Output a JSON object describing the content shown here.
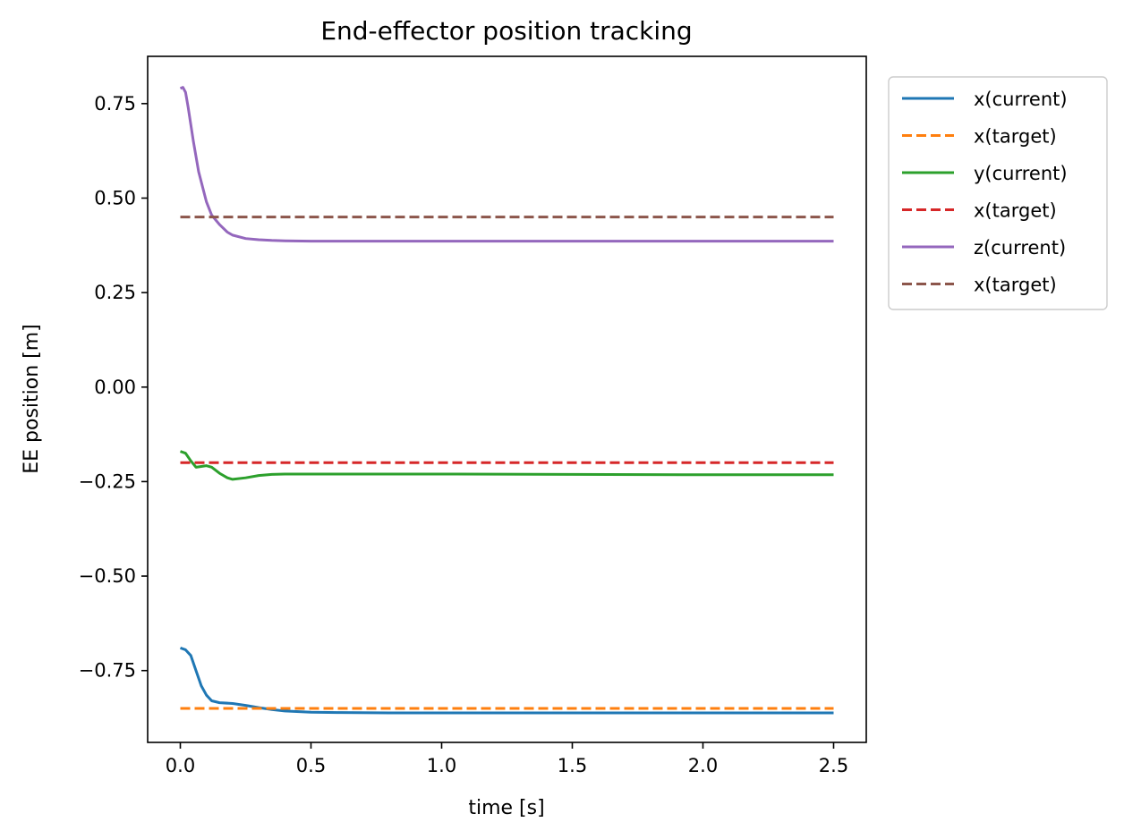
{
  "chart_data": {
    "type": "line",
    "title": "End-effector position tracking",
    "xlabel": "time [s]",
    "ylabel": "EE position [m]",
    "xlim": [
      -0.125,
      2.625
    ],
    "ylim": [
      -0.94,
      0.875
    ],
    "xticks": [
      0.0,
      0.5,
      1.0,
      1.5,
      2.0,
      2.5
    ],
    "xtick_labels": [
      "0.0",
      "0.5",
      "1.0",
      "1.5",
      "2.0",
      "2.5"
    ],
    "yticks": [
      -0.75,
      -0.5,
      -0.25,
      0.0,
      0.25,
      0.5,
      0.75
    ],
    "ytick_labels": [
      "−0.75",
      "−0.50",
      "−0.25",
      "0.00",
      "0.25",
      "0.50",
      "0.75"
    ],
    "grid": false,
    "legend_position": "outside-upper-right",
    "series": [
      {
        "name": "x(current)",
        "color": "#1f77b4",
        "style": "solid",
        "x": [
          0,
          0.02,
          0.04,
          0.06,
          0.08,
          0.1,
          0.12,
          0.15,
          0.2,
          0.25,
          0.3,
          0.35,
          0.4,
          0.5,
          0.6,
          0.8,
          1.0,
          1.5,
          2.0,
          2.5
        ],
        "y": [
          -0.69,
          -0.695,
          -0.71,
          -0.75,
          -0.79,
          -0.815,
          -0.83,
          -0.835,
          -0.837,
          -0.842,
          -0.848,
          -0.853,
          -0.857,
          -0.86,
          -0.861,
          -0.862,
          -0.862,
          -0.862,
          -0.862,
          -0.862
        ]
      },
      {
        "name": "x(target)",
        "color": "#ff7f0e",
        "style": "dashed",
        "x": [
          0,
          2.5
        ],
        "y": [
          -0.85,
          -0.85
        ]
      },
      {
        "name": "y(current)",
        "color": "#2ca02c",
        "style": "solid",
        "x": [
          0,
          0.02,
          0.04,
          0.06,
          0.08,
          0.1,
          0.12,
          0.15,
          0.18,
          0.2,
          0.25,
          0.3,
          0.35,
          0.4,
          0.5,
          1.0,
          1.5,
          2.0,
          2.5
        ],
        "y": [
          -0.17,
          -0.175,
          -0.195,
          -0.212,
          -0.21,
          -0.208,
          -0.212,
          -0.228,
          -0.24,
          -0.244,
          -0.24,
          -0.234,
          -0.231,
          -0.23,
          -0.23,
          -0.23,
          -0.231,
          -0.232,
          -0.232
        ],
        "note": ""
      },
      {
        "name": "x(target)",
        "color": "#d62728",
        "style": "dashed",
        "x": [
          0,
          2.5
        ],
        "y": [
          -0.2,
          -0.2
        ]
      },
      {
        "name": "z(current)",
        "color": "#9467bd",
        "style": "solid",
        "x": [
          0,
          0.01,
          0.02,
          0.03,
          0.05,
          0.07,
          0.1,
          0.12,
          0.15,
          0.18,
          0.2,
          0.25,
          0.3,
          0.35,
          0.4,
          0.5,
          1.0,
          1.5,
          2.0,
          2.5
        ],
        "y": [
          0.79,
          0.793,
          0.78,
          0.74,
          0.65,
          0.57,
          0.49,
          0.455,
          0.43,
          0.41,
          0.402,
          0.393,
          0.39,
          0.388,
          0.387,
          0.386,
          0.386,
          0.386,
          0.386,
          0.386
        ]
      },
      {
        "name": "x(target)",
        "color": "#8c564b",
        "style": "dashed",
        "x": [
          0,
          2.5
        ],
        "y": [
          0.45,
          0.45
        ]
      }
    ]
  }
}
